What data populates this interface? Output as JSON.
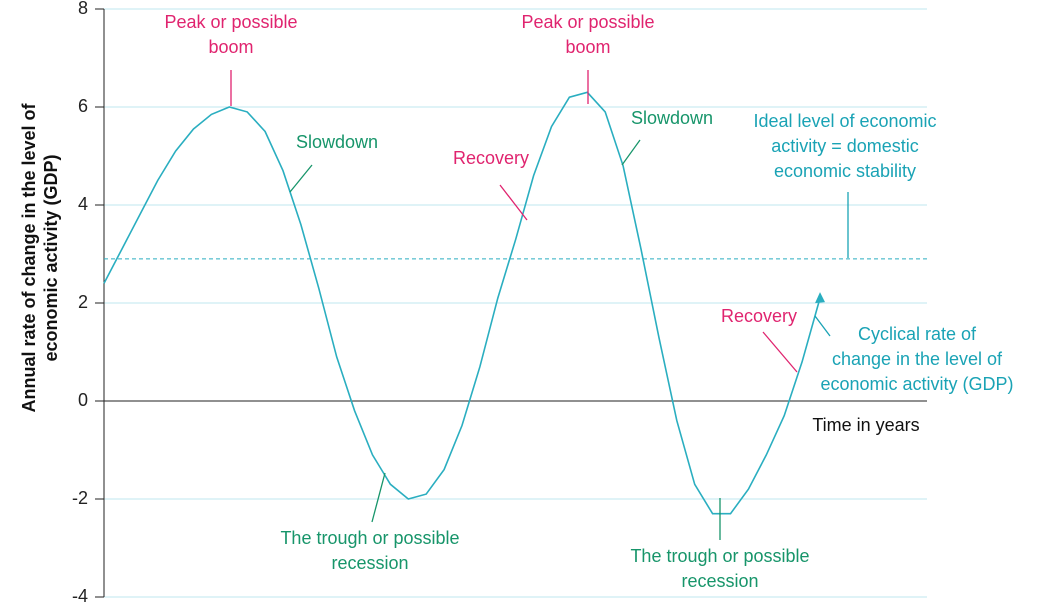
{
  "chart_data": {
    "type": "line",
    "y_label": [
      "Annual rate of change in the level of",
      "economic activity (GDP)"
    ],
    "x_label": "Time in years",
    "categories": [
      null,
      null,
      null,
      null,
      null,
      null,
      null,
      null,
      null,
      null,
      null,
      null,
      null,
      null,
      null,
      null,
      null,
      null,
      null,
      null,
      null,
      null,
      null,
      null,
      null,
      null,
      null,
      null,
      null,
      null,
      null,
      null,
      null,
      null,
      null,
      null,
      null,
      null,
      null,
      null,
      null
    ],
    "values": [
      2.4,
      3.1,
      3.8,
      4.5,
      5.1,
      5.55,
      5.85,
      6.0,
      5.9,
      5.5,
      4.7,
      3.6,
      2.3,
      0.9,
      -0.2,
      -1.1,
      -1.7,
      -2.0,
      -1.9,
      -1.4,
      -0.5,
      0.7,
      2.1,
      3.3,
      4.6,
      5.6,
      6.2,
      6.3,
      5.9,
      4.8,
      3.1,
      1.3,
      -0.4,
      -1.7,
      -2.3,
      -2.3,
      -1.8,
      -1.1,
      -0.3,
      0.8,
      2.1
    ],
    "color": "#2aaec0",
    "reference_value": 2.9,
    "reference_color": "#2aaec0",
    "ylim": [
      -4,
      8
    ],
    "yticks": [
      -4,
      -2,
      0,
      2,
      4,
      6,
      8
    ],
    "grid": true,
    "grid_color": "#bfe7ef",
    "annotations": [
      {
        "lines": [
          "Peak or possible",
          "boom"
        ],
        "color": "#e0246f"
      },
      {
        "lines": [
          "Peak or possible",
          "boom"
        ],
        "color": "#e0246f"
      },
      {
        "lines": [
          "Slowdown"
        ],
        "color": "#17956a"
      },
      {
        "lines": [
          "Slowdown"
        ],
        "color": "#17956a"
      },
      {
        "lines": [
          "Recovery"
        ],
        "color": "#e0246f"
      },
      {
        "lines": [
          "Recovery"
        ],
        "color": "#e0246f"
      },
      {
        "lines": [
          "The trough or possible",
          "recession"
        ],
        "color": "#17956a"
      },
      {
        "lines": [
          "The trough or possible",
          "recession"
        ],
        "color": "#17956a"
      },
      {
        "lines": [
          "Ideal level of economic",
          "activity = domestic",
          "economic stability"
        ],
        "color": "#1aa3b5"
      },
      {
        "lines": [
          "Cyclical rate of",
          "change in the level of",
          "economic activity (GDP)"
        ],
        "color": "#1aa3b5"
      }
    ]
  }
}
